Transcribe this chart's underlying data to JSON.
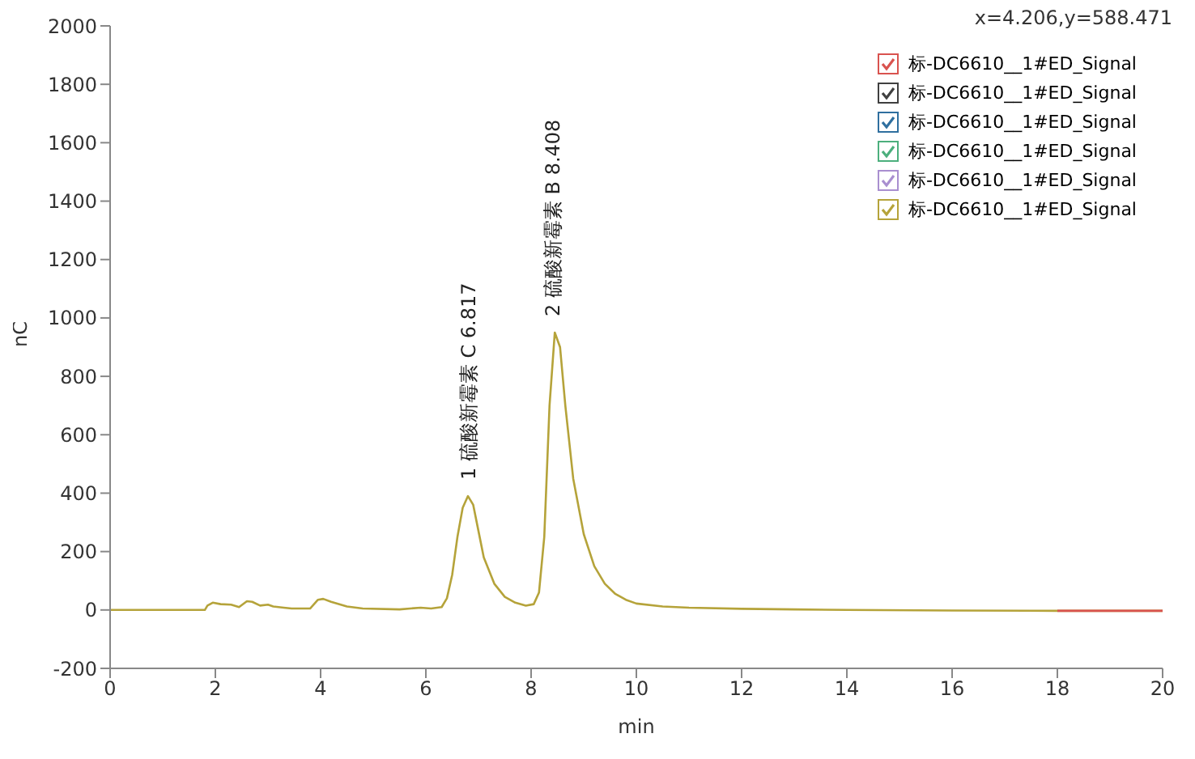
{
  "chart_data": {
    "type": "line",
    "xlabel": "min",
    "ylabel": "nC",
    "xlim": [
      0,
      20
    ],
    "xticks": [
      0,
      2,
      4,
      6,
      8,
      10,
      12,
      14,
      16,
      18,
      20
    ],
    "ylim": [
      -200,
      2000
    ],
    "yticks": [
      -200,
      0,
      200,
      400,
      600,
      800,
      1000,
      1200,
      1400,
      1600,
      1800,
      2000
    ],
    "grid": false,
    "legend": "top right",
    "marker": "none",
    "line_style": "solid",
    "x": [
      0,
      1.8,
      1.85,
      1.95,
      2.1,
      2.3,
      2.45,
      2.6,
      2.7,
      2.85,
      3.0,
      3.1,
      3.3,
      3.45,
      3.8,
      3.95,
      4.05,
      4.2,
      4.5,
      4.8,
      5.5,
      5.9,
      6.1,
      6.3,
      6.4,
      6.5,
      6.6,
      6.7,
      6.8,
      6.9,
      7.0,
      7.1,
      7.3,
      7.5,
      7.7,
      7.9,
      8.05,
      8.15,
      8.25,
      8.35,
      8.45,
      8.55,
      8.65,
      8.8,
      9.0,
      9.2,
      9.4,
      9.6,
      9.8,
      10.0,
      10.5,
      11,
      12,
      13,
      14,
      16,
      18,
      20
    ],
    "series": [
      {
        "name": "标-DC6610__1#ED_Signal",
        "color": "#d9534f",
        "values": [
          null,
          null,
          null,
          null,
          null,
          null,
          null,
          null,
          null,
          null,
          null,
          null,
          null,
          null,
          null,
          null,
          null,
          null,
          null,
          null,
          null,
          null,
          null,
          null,
          null,
          null,
          null,
          null,
          null,
          null,
          null,
          null,
          null,
          null,
          null,
          null,
          null,
          null,
          null,
          null,
          null,
          null,
          null,
          null,
          null,
          null,
          null,
          null,
          null,
          null,
          null,
          null,
          null,
          null,
          null,
          null,
          -3,
          -3
        ]
      },
      {
        "name": "标-DC6610__1#ED_Signal",
        "color": "#404040",
        "values": [
          null,
          null,
          null,
          null,
          null,
          null,
          null,
          null,
          null,
          null,
          null,
          null,
          null,
          null,
          null,
          null,
          null,
          null,
          null,
          null,
          null,
          null,
          null,
          null,
          null,
          null,
          null,
          null,
          null,
          null,
          null,
          null,
          null,
          null,
          null,
          null,
          null,
          null,
          null,
          null,
          null,
          null,
          null,
          null,
          null,
          null,
          null,
          null,
          null,
          null,
          null,
          null,
          null,
          null,
          null,
          null,
          null,
          null
        ]
      },
      {
        "name": "标-DC6610__1#ED_Signal",
        "color": "#2f6f9f",
        "values": [
          null,
          null,
          null,
          null,
          null,
          null,
          null,
          null,
          null,
          null,
          null,
          null,
          null,
          null,
          null,
          null,
          null,
          null,
          null,
          null,
          null,
          null,
          null,
          null,
          null,
          null,
          null,
          null,
          null,
          null,
          null,
          null,
          null,
          null,
          null,
          null,
          null,
          null,
          null,
          null,
          null,
          null,
          null,
          null,
          null,
          null,
          null,
          null,
          null,
          null,
          null,
          null,
          null,
          null,
          null,
          null,
          null,
          null
        ]
      },
      {
        "name": "标-DC6610__1#ED_Signal",
        "color": "#4caf7d",
        "values": [
          null,
          null,
          null,
          null,
          null,
          null,
          null,
          null,
          null,
          null,
          null,
          null,
          null,
          null,
          null,
          null,
          null,
          null,
          null,
          null,
          null,
          null,
          null,
          null,
          null,
          null,
          null,
          null,
          null,
          null,
          null,
          null,
          null,
          null,
          null,
          null,
          null,
          null,
          null,
          null,
          null,
          null,
          null,
          null,
          null,
          null,
          null,
          null,
          null,
          null,
          null,
          null,
          null,
          null,
          null,
          null,
          null,
          null
        ]
      },
      {
        "name": "标-DC6610__1#ED_Signal",
        "color": "#a98fd0",
        "values": [
          null,
          null,
          null,
          null,
          null,
          null,
          null,
          null,
          null,
          null,
          null,
          null,
          null,
          null,
          null,
          null,
          null,
          null,
          null,
          null,
          null,
          null,
          null,
          null,
          null,
          null,
          null,
          null,
          null,
          null,
          null,
          null,
          null,
          null,
          null,
          null,
          null,
          null,
          null,
          null,
          null,
          null,
          null,
          null,
          null,
          null,
          null,
          null,
          null,
          null,
          null,
          null,
          null,
          null,
          null,
          null,
          null,
          null
        ]
      },
      {
        "name": "标-DC6610__1#ED_Signal",
        "color": "#b5a33a",
        "values": [
          0,
          0,
          15,
          25,
          20,
          18,
          10,
          30,
          28,
          15,
          18,
          12,
          8,
          5,
          5,
          35,
          38,
          28,
          12,
          5,
          2,
          8,
          5,
          10,
          40,
          120,
          250,
          350,
          390,
          360,
          270,
          180,
          90,
          45,
          25,
          15,
          20,
          60,
          250,
          700,
          950,
          900,
          700,
          450,
          260,
          150,
          90,
          55,
          35,
          22,
          12,
          8,
          4,
          2,
          0,
          -2,
          -3,
          -3
        ]
      }
    ],
    "annotations": [
      "x=4.206,y=588.471",
      {
        "text": "1 硫酸新霉素 C 6.817",
        "x": 6.817,
        "y": 390
      },
      {
        "text": "2 硫酸新霉素 B 8.408",
        "x": 8.408,
        "y": 950
      }
    ]
  }
}
